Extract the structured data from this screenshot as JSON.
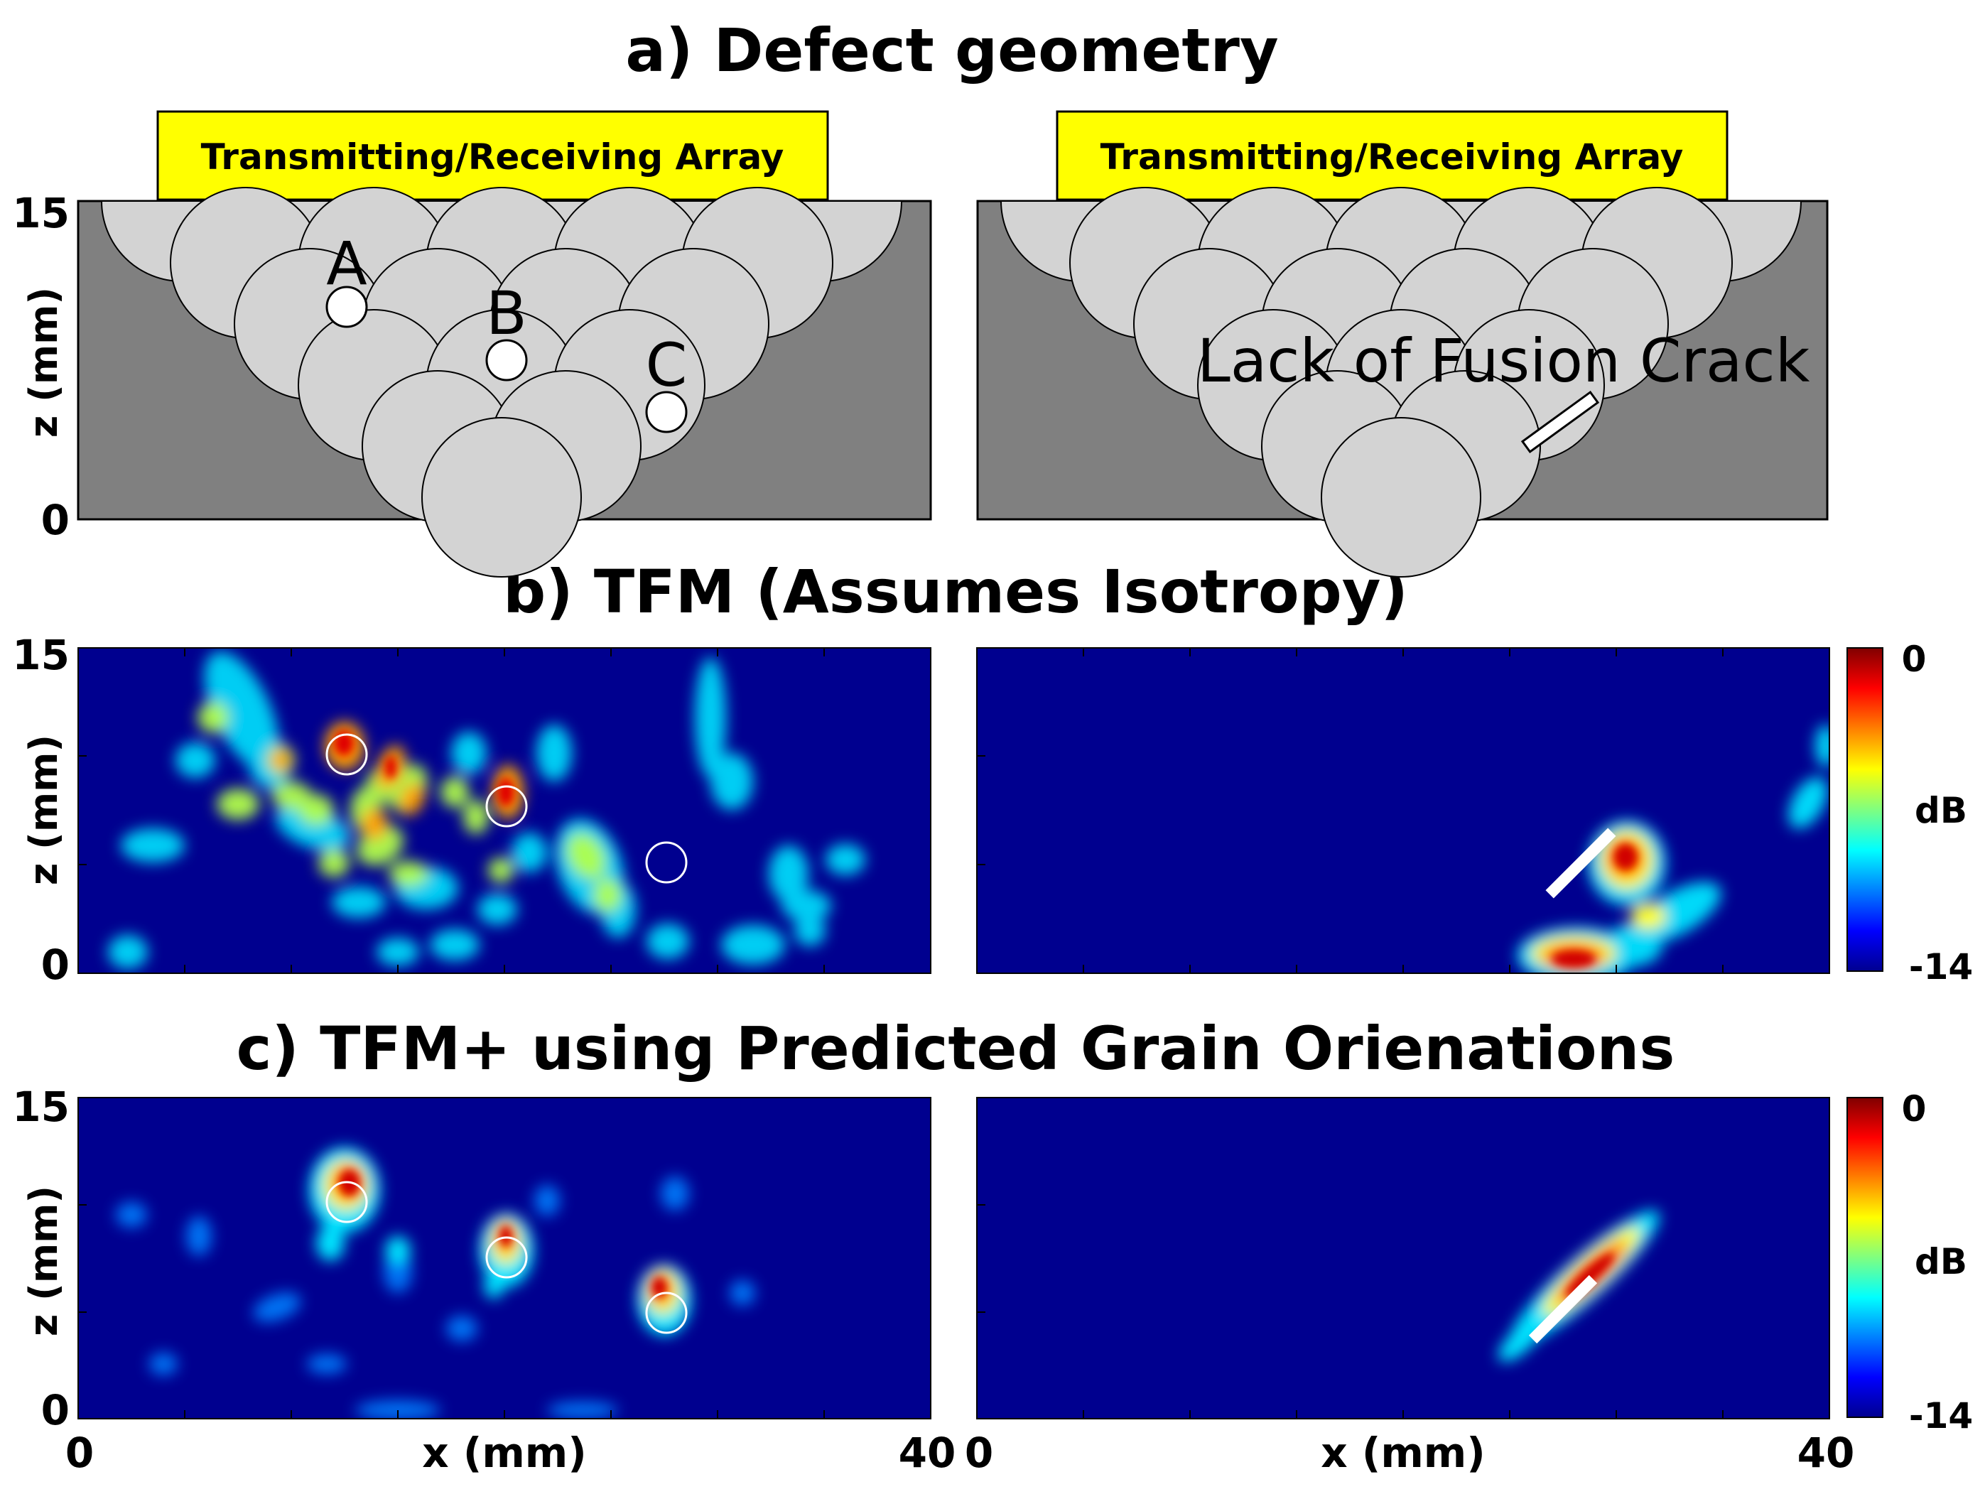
{
  "titles": {
    "a": "a) Defect geometry",
    "b": "b) TFM (Assumes Isotropy)",
    "c": "c) TFM+ using Predicted Grain Orienations"
  },
  "array_label": "Transmitting/Receiving Array",
  "defect_labels": [
    "A",
    "B",
    "C"
  ],
  "crack_label": "Lack of Fusion Crack",
  "axes": {
    "z_label": "z (mm)",
    "x_label": "x (mm)",
    "z_ticks": [
      "15",
      "0"
    ],
    "x_ticks": [
      "0",
      "40"
    ],
    "x_range": [
      0,
      40
    ],
    "z_range": [
      0,
      15
    ]
  },
  "colorbar": {
    "label": "dB",
    "max": "0",
    "min": "-14",
    "range": [
      -14,
      0
    ],
    "colormap": "jet"
  },
  "colors": {
    "array": "#ffff00",
    "parent_metal": "#808080",
    "weld_grains": "#d3d3d3",
    "image_background": "#00008f"
  },
  "chart_data": [
    {
      "type": "heatmap",
      "panel": "b-left",
      "xlim": [
        0,
        40
      ],
      "ylim": [
        0,
        15
      ],
      "unit": "dB",
      "defects_x_mm": [
        12.5,
        20,
        27.5
      ],
      "defects_z_mm": [
        10,
        7.5,
        5
      ]
    },
    {
      "type": "heatmap",
      "panel": "b-right",
      "xlim": [
        0,
        40
      ],
      "ylim": [
        0,
        15
      ],
      "unit": "dB"
    },
    {
      "type": "heatmap",
      "panel": "c-left",
      "xlim": [
        0,
        40
      ],
      "ylim": [
        0,
        15
      ],
      "unit": "dB",
      "defects_x_mm": [
        12.5,
        20,
        27.5
      ],
      "defects_z_mm": [
        10,
        7.5,
        5
      ]
    },
    {
      "type": "heatmap",
      "panel": "c-right",
      "xlim": [
        0,
        40
      ],
      "ylim": [
        0,
        15
      ],
      "unit": "dB"
    }
  ]
}
